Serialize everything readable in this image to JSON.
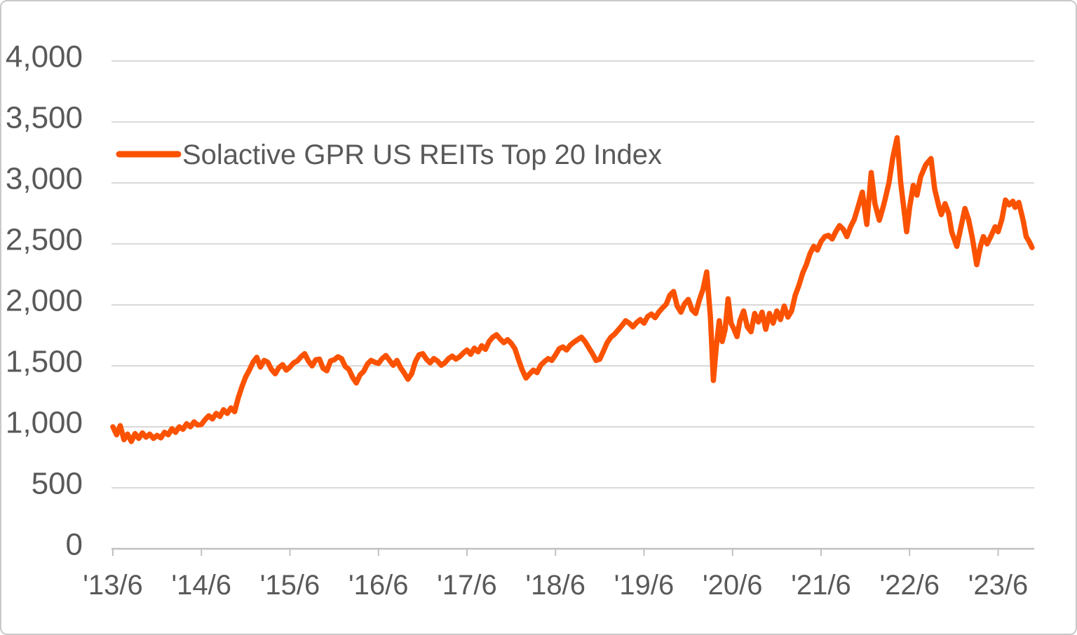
{
  "chart_data": {
    "type": "line",
    "title": "",
    "grid": "horizontal",
    "legend_position": "top-left-inside",
    "x_axis": {
      "tick_labels": [
        "'13/6",
        "'14/6",
        "'15/6",
        "'16/6",
        "'17/6",
        "'18/6",
        "'19/6",
        "'20/6",
        "'21/6",
        "'22/6",
        "'23/6"
      ],
      "tick_spacing_months": 12
    },
    "y_axis": {
      "min": 0,
      "max": 4000,
      "step": 500,
      "tick_labels": [
        "0",
        "500",
        "1,000",
        "1,500",
        "2,000",
        "2,500",
        "3,000",
        "3,500",
        "4,000"
      ]
    },
    "series": [
      {
        "name": "Solactive GPR US REITs Top 20 Index",
        "color": "#FB5200",
        "x_unit": "months_since_first_tick_2013_06",
        "points": [
          [
            0,
            1000
          ],
          [
            0.5,
            935
          ],
          [
            1,
            1010
          ],
          [
            1.5,
            895
          ],
          [
            2,
            940
          ],
          [
            2.5,
            880
          ],
          [
            3,
            945
          ],
          [
            3.5,
            905
          ],
          [
            4,
            950
          ],
          [
            4.5,
            915
          ],
          [
            5,
            940
          ],
          [
            5.5,
            905
          ],
          [
            6,
            930
          ],
          [
            6.5,
            910
          ],
          [
            7,
            955
          ],
          [
            7.5,
            935
          ],
          [
            8,
            985
          ],
          [
            8.5,
            955
          ],
          [
            9,
            1000
          ],
          [
            9.5,
            980
          ],
          [
            10,
            1025
          ],
          [
            10.5,
            1000
          ],
          [
            11,
            1040
          ],
          [
            11.5,
            1015
          ],
          [
            12,
            1020
          ],
          [
            12.5,
            1060
          ],
          [
            13,
            1090
          ],
          [
            13.5,
            1065
          ],
          [
            14,
            1110
          ],
          [
            14.5,
            1085
          ],
          [
            15,
            1140
          ],
          [
            15.5,
            1110
          ],
          [
            16,
            1155
          ],
          [
            16.5,
            1125
          ],
          [
            17,
            1240
          ],
          [
            17.5,
            1330
          ],
          [
            18,
            1410
          ],
          [
            18.5,
            1465
          ],
          [
            19,
            1530
          ],
          [
            19.5,
            1570
          ],
          [
            20,
            1490
          ],
          [
            20.5,
            1545
          ],
          [
            21,
            1530
          ],
          [
            21.5,
            1470
          ],
          [
            22,
            1435
          ],
          [
            22.5,
            1485
          ],
          [
            23,
            1510
          ],
          [
            23.5,
            1465
          ],
          [
            24,
            1490
          ],
          [
            24.5,
            1525
          ],
          [
            25,
            1540
          ],
          [
            25.5,
            1575
          ],
          [
            26,
            1600
          ],
          [
            26.5,
            1540
          ],
          [
            27,
            1500
          ],
          [
            27.5,
            1550
          ],
          [
            28,
            1555
          ],
          [
            28.5,
            1480
          ],
          [
            29,
            1460
          ],
          [
            29.5,
            1540
          ],
          [
            30,
            1550
          ],
          [
            30.5,
            1575
          ],
          [
            31,
            1560
          ],
          [
            31.5,
            1495
          ],
          [
            32,
            1470
          ],
          [
            32.5,
            1405
          ],
          [
            33,
            1360
          ],
          [
            33.5,
            1425
          ],
          [
            34,
            1455
          ],
          [
            34.5,
            1515
          ],
          [
            35,
            1545
          ],
          [
            35.5,
            1530
          ],
          [
            36,
            1520
          ],
          [
            36.5,
            1560
          ],
          [
            37,
            1585
          ],
          [
            37.5,
            1545
          ],
          [
            38,
            1505
          ],
          [
            38.5,
            1545
          ],
          [
            39,
            1485
          ],
          [
            39.5,
            1440
          ],
          [
            40,
            1390
          ],
          [
            40.5,
            1435
          ],
          [
            41,
            1535
          ],
          [
            41.5,
            1590
          ],
          [
            42,
            1600
          ],
          [
            42.5,
            1555
          ],
          [
            43,
            1525
          ],
          [
            43.5,
            1560
          ],
          [
            44,
            1540
          ],
          [
            44.5,
            1505
          ],
          [
            45,
            1525
          ],
          [
            45.5,
            1560
          ],
          [
            46,
            1580
          ],
          [
            46.5,
            1555
          ],
          [
            47,
            1575
          ],
          [
            47.5,
            1605
          ],
          [
            48,
            1630
          ],
          [
            48.5,
            1595
          ],
          [
            49,
            1645
          ],
          [
            49.5,
            1615
          ],
          [
            50,
            1665
          ],
          [
            50.5,
            1635
          ],
          [
            51,
            1700
          ],
          [
            51.5,
            1735
          ],
          [
            52,
            1755
          ],
          [
            52.5,
            1720
          ],
          [
            53,
            1690
          ],
          [
            53.5,
            1715
          ],
          [
            54,
            1685
          ],
          [
            54.5,
            1640
          ],
          [
            55,
            1550
          ],
          [
            55.5,
            1465
          ],
          [
            56,
            1400
          ],
          [
            56.5,
            1435
          ],
          [
            57,
            1465
          ],
          [
            57.5,
            1445
          ],
          [
            58,
            1505
          ],
          [
            58.5,
            1535
          ],
          [
            59,
            1560
          ],
          [
            59.5,
            1545
          ],
          [
            60,
            1590
          ],
          [
            60.5,
            1640
          ],
          [
            61,
            1655
          ],
          [
            61.5,
            1630
          ],
          [
            62,
            1670
          ],
          [
            62.5,
            1695
          ],
          [
            63,
            1715
          ],
          [
            63.5,
            1735
          ],
          [
            64,
            1700
          ],
          [
            64.5,
            1650
          ],
          [
            65,
            1600
          ],
          [
            65.5,
            1545
          ],
          [
            66,
            1555
          ],
          [
            66.5,
            1620
          ],
          [
            67,
            1690
          ],
          [
            67.5,
            1735
          ],
          [
            68,
            1760
          ],
          [
            68.5,
            1795
          ],
          [
            69,
            1830
          ],
          [
            69.5,
            1870
          ],
          [
            70,
            1850
          ],
          [
            70.5,
            1820
          ],
          [
            71,
            1855
          ],
          [
            71.5,
            1880
          ],
          [
            72,
            1850
          ],
          [
            72.5,
            1905
          ],
          [
            73,
            1925
          ],
          [
            73.5,
            1895
          ],
          [
            74,
            1940
          ],
          [
            74.5,
            1975
          ],
          [
            75,
            2005
          ],
          [
            75.5,
            2080
          ],
          [
            76,
            2110
          ],
          [
            76.5,
            1990
          ],
          [
            77,
            1940
          ],
          [
            77.5,
            2010
          ],
          [
            78,
            2045
          ],
          [
            78.5,
            1960
          ],
          [
            79,
            1930
          ],
          [
            79.5,
            2040
          ],
          [
            80,
            2130
          ],
          [
            80.5,
            2270
          ],
          [
            81,
            1900
          ],
          [
            81.4,
            1380
          ],
          [
            81.8,
            1660
          ],
          [
            82.2,
            1870
          ],
          [
            82.6,
            1700
          ],
          [
            83,
            1800
          ],
          [
            83.4,
            2050
          ],
          [
            83.8,
            1850
          ],
          [
            84.2,
            1800
          ],
          [
            84.6,
            1740
          ],
          [
            85,
            1870
          ],
          [
            85.5,
            1950
          ],
          [
            86,
            1820
          ],
          [
            86.5,
            1780
          ],
          [
            87,
            1930
          ],
          [
            87.5,
            1860
          ],
          [
            88,
            1940
          ],
          [
            88.5,
            1800
          ],
          [
            89,
            1930
          ],
          [
            89.5,
            1850
          ],
          [
            90,
            1950
          ],
          [
            90.5,
            1880
          ],
          [
            91,
            1990
          ],
          [
            91.5,
            1900
          ],
          [
            92,
            1950
          ],
          [
            92.5,
            2080
          ],
          [
            93,
            2160
          ],
          [
            93.5,
            2260
          ],
          [
            94,
            2330
          ],
          [
            94.5,
            2420
          ],
          [
            95,
            2480
          ],
          [
            95.5,
            2450
          ],
          [
            96,
            2520
          ],
          [
            96.5,
            2560
          ],
          [
            97,
            2570
          ],
          [
            97.5,
            2540
          ],
          [
            98,
            2600
          ],
          [
            98.5,
            2650
          ],
          [
            99,
            2620
          ],
          [
            99.5,
            2560
          ],
          [
            100,
            2640
          ],
          [
            100.5,
            2700
          ],
          [
            101,
            2800
          ],
          [
            101.6,
            2925
          ],
          [
            102.2,
            2660
          ],
          [
            102.8,
            3085
          ],
          [
            103.3,
            2830
          ],
          [
            103.9,
            2695
          ],
          [
            104.4,
            2800
          ],
          [
            104.7,
            2870
          ],
          [
            105.2,
            3000
          ],
          [
            105.7,
            3200
          ],
          [
            106.3,
            3370
          ],
          [
            106.8,
            3000
          ],
          [
            107.3,
            2750
          ],
          [
            107.6,
            2600
          ],
          [
            108,
            2800
          ],
          [
            108.5,
            2980
          ],
          [
            109,
            2900
          ],
          [
            109.5,
            3050
          ],
          [
            110.2,
            3150
          ],
          [
            110.9,
            3200
          ],
          [
            111.4,
            2950
          ],
          [
            112,
            2800
          ],
          [
            112.3,
            2740
          ],
          [
            112.8,
            2830
          ],
          [
            113.3,
            2750
          ],
          [
            113.7,
            2600
          ],
          [
            114.4,
            2480
          ],
          [
            115,
            2650
          ],
          [
            115.5,
            2790
          ],
          [
            116,
            2700
          ],
          [
            116.5,
            2550
          ],
          [
            117.1,
            2330
          ],
          [
            117.6,
            2480
          ],
          [
            118,
            2560
          ],
          [
            118.5,
            2500
          ],
          [
            119,
            2560
          ],
          [
            119.6,
            2640
          ],
          [
            120,
            2600
          ],
          [
            120.5,
            2700
          ],
          [
            121,
            2860
          ],
          [
            121.5,
            2820
          ],
          [
            122,
            2850
          ],
          [
            122.3,
            2800
          ],
          [
            122.8,
            2840
          ],
          [
            123.4,
            2690
          ],
          [
            123.8,
            2560
          ],
          [
            124.2,
            2520
          ],
          [
            124.6,
            2470
          ]
        ]
      }
    ]
  },
  "colors": {
    "grid": "#D9D9D9",
    "axis": "#C0C0C0",
    "labels": "#595959",
    "background": "#FFFFFF",
    "figure_border": "#C9C9C9"
  }
}
